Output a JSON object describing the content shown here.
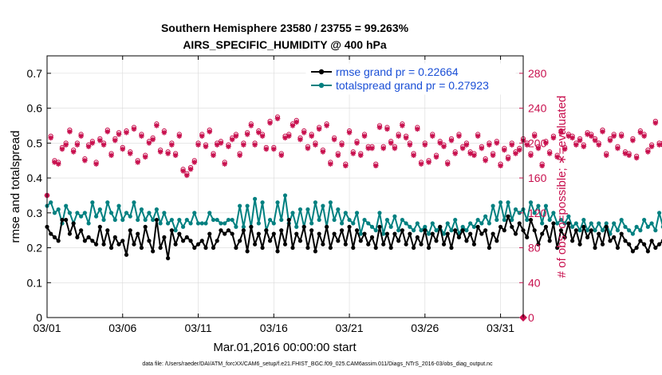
{
  "colors": {
    "rmse": "#000000",
    "spread": "#008080",
    "obs": "#c8104e",
    "legend_text": "#1a4fd6",
    "frame": "#000000",
    "grid": "#d9d9d9"
  },
  "chart_data": {
    "type": "line",
    "title": [
      "Southern Hemisphere 23580 / 23755 = 99.263%",
      "AIRS_SPECIFIC_HUMIDITY @ 400 hPa"
    ],
    "xlabel": "Mar.01,2016 00:00:00 start",
    "ylabel_left": "rmse and totalspread",
    "ylabel_right": "# of obs: o=possible; ∗=evaluated",
    "footnote": "data file: /Users/raeder/DAI/ATM_forcXX/CAM6_setup/f.e21.FHIST_BGC.f09_025.CAM6assim.011/Diags_NTrS_2016-03/obs_diag_output.nc",
    "x_range": [
      0,
      31.5
    ],
    "x_ticks": [
      0,
      5,
      10,
      15,
      20,
      25,
      30
    ],
    "x_tick_labels": [
      "03/01",
      "03/06",
      "03/11",
      "03/16",
      "03/21",
      "03/26",
      "03/31"
    ],
    "ylim_left": [
      0,
      0.75
    ],
    "yticks_left": [
      "0",
      "0.1",
      "0.2",
      "0.3",
      "0.4",
      "0.5",
      "0.6",
      "0.7"
    ],
    "ylim_right": [
      0,
      300
    ],
    "yticks_right": [
      "0",
      "40",
      "80",
      "120",
      "160",
      "200",
      "240",
      "280"
    ],
    "legend_position": "top-right",
    "x_step_days": 0.25,
    "series": [
      {
        "name": "rmse",
        "legend": "rmse grand pr = 0.22664",
        "axis": "left",
        "values": [
          0.26,
          0.24,
          0.23,
          0.22,
          0.28,
          0.28,
          0.24,
          0.27,
          0.23,
          0.25,
          0.22,
          0.23,
          0.22,
          0.21,
          0.26,
          0.21,
          0.25,
          0.2,
          0.23,
          0.21,
          0.22,
          0.18,
          0.25,
          0.21,
          0.24,
          0.2,
          0.26,
          0.22,
          0.19,
          0.28,
          0.2,
          0.23,
          0.17,
          0.25,
          0.21,
          0.24,
          0.22,
          0.23,
          0.22,
          0.2,
          0.21,
          0.22,
          0.2,
          0.24,
          0.2,
          0.22,
          0.25,
          0.24,
          0.25,
          0.24,
          0.2,
          0.22,
          0.25,
          0.19,
          0.26,
          0.21,
          0.24,
          0.2,
          0.25,
          0.22,
          0.24,
          0.19,
          0.25,
          0.21,
          0.28,
          0.2,
          0.24,
          0.22,
          0.26,
          0.2,
          0.25,
          0.19,
          0.24,
          0.21,
          0.26,
          0.2,
          0.24,
          0.22,
          0.25,
          0.21,
          0.26,
          0.2,
          0.25,
          0.22,
          0.24,
          0.21,
          0.23,
          0.2,
          0.26,
          0.21,
          0.24,
          0.2,
          0.24,
          0.22,
          0.25,
          0.21,
          0.24,
          0.2,
          0.23,
          0.21,
          0.25,
          0.2,
          0.24,
          0.22,
          0.26,
          0.21,
          0.24,
          0.2,
          0.25,
          0.23,
          0.25,
          0.22,
          0.24,
          0.21,
          0.26,
          0.24,
          0.25,
          0.2,
          0.24,
          0.22,
          0.26,
          0.25,
          0.29,
          0.26,
          0.24,
          0.27,
          0.25,
          0.23,
          0.28,
          0.25,
          0.21,
          0.24,
          0.26,
          0.22,
          0.27,
          0.2,
          0.25,
          0.23,
          0.27,
          0.22,
          0.25,
          0.21,
          0.26,
          0.23,
          0.25,
          0.2,
          0.24,
          0.21,
          0.26,
          0.22,
          0.23,
          0.2,
          0.24,
          0.22,
          0.21,
          0.19,
          0.2,
          0.22,
          0.21,
          0.19,
          0.22,
          0.2,
          0.21,
          0.22,
          0.24,
          0.2,
          0.23,
          0.22,
          0.15,
          0.22,
          0.23,
          0.22,
          0.24,
          0.21,
          0.24,
          0.22,
          0.21,
          0.2,
          0.24,
          0.21,
          0.23,
          0.2,
          0.24,
          0.22,
          0.21,
          0.19,
          0.23,
          0.2,
          0.21,
          0.19,
          0.24,
          0.22,
          0.23,
          0.2,
          0.21,
          0.18,
          0.2,
          0.24,
          0.22,
          0.19,
          0.23,
          0.21,
          0.18,
          0.2,
          0.16,
          0.2,
          0.18,
          0.22,
          0.16,
          0.21,
          0.23,
          0.22
        ]
      },
      {
        "name": "totalspread",
        "legend": "totalspread grand pr = 0.27923",
        "axis": "left",
        "values": [
          0.32,
          0.33,
          0.3,
          0.31,
          0.27,
          0.32,
          0.3,
          0.27,
          0.3,
          0.29,
          0.3,
          0.27,
          0.33,
          0.29,
          0.31,
          0.28,
          0.33,
          0.3,
          0.28,
          0.32,
          0.28,
          0.3,
          0.29,
          0.33,
          0.28,
          0.31,
          0.28,
          0.3,
          0.28,
          0.31,
          0.27,
          0.3,
          0.27,
          0.28,
          0.25,
          0.28,
          0.26,
          0.28,
          0.27,
          0.3,
          0.27,
          0.27,
          0.27,
          0.3,
          0.28,
          0.28,
          0.27,
          0.27,
          0.28,
          0.28,
          0.26,
          0.32,
          0.26,
          0.32,
          0.26,
          0.34,
          0.27,
          0.33,
          0.25,
          0.28,
          0.27,
          0.33,
          0.28,
          0.35,
          0.27,
          0.3,
          0.26,
          0.31,
          0.26,
          0.31,
          0.27,
          0.33,
          0.28,
          0.32,
          0.26,
          0.33,
          0.28,
          0.31,
          0.27,
          0.3,
          0.28,
          0.27,
          0.3,
          0.24,
          0.28,
          0.27,
          0.26,
          0.25,
          0.3,
          0.24,
          0.28,
          0.26,
          0.29,
          0.25,
          0.28,
          0.27,
          0.26,
          0.25,
          0.27,
          0.25,
          0.26,
          0.24,
          0.27,
          0.25,
          0.26,
          0.24,
          0.27,
          0.25,
          0.28,
          0.24,
          0.26,
          0.25,
          0.27,
          0.26,
          0.28,
          0.27,
          0.29,
          0.27,
          0.32,
          0.28,
          0.33,
          0.28,
          0.33,
          0.28,
          0.31,
          0.3,
          0.31,
          0.28,
          0.33,
          0.3,
          0.32,
          0.27,
          0.32,
          0.28,
          0.3,
          0.27,
          0.28,
          0.27,
          0.29,
          0.26,
          0.27,
          0.25,
          0.28,
          0.25,
          0.27,
          0.25,
          0.27,
          0.25,
          0.27,
          0.24,
          0.27,
          0.25,
          0.28,
          0.26,
          0.25,
          0.24,
          0.26,
          0.25,
          0.28,
          0.26,
          0.27,
          0.25,
          0.3,
          0.26,
          0.32,
          0.26,
          0.27,
          0.25,
          0.26,
          0.24,
          0.27,
          0.26,
          0.28,
          0.26,
          0.27,
          0.26,
          0.28,
          0.26,
          0.27,
          0.25,
          0.26,
          0.25,
          0.27,
          0.26,
          0.27,
          0.26,
          0.28,
          0.26,
          0.25,
          0.26,
          0.25,
          0.26,
          0.32,
          0.31,
          0.32,
          0.29,
          0.3,
          0.27,
          0.29,
          0.26,
          0.3,
          0.26,
          0.27,
          0.25,
          0.26,
          0.25,
          0.25,
          0.23,
          0.26,
          0.24,
          0.27,
          0.25,
          0.28,
          0.24,
          0.26,
          0.25,
          0.24,
          0.23,
          0.27,
          0.25,
          0.28
        ]
      },
      {
        "name": "obs_possible",
        "legend": "o=possible",
        "axis": "right",
        "marker": "o",
        "values": [
          140,
          208,
          180,
          178,
          195,
          200,
          215,
          192,
          200,
          210,
          182,
          198,
          202,
          178,
          205,
          200,
          215,
          188,
          205,
          212,
          195,
          214,
          190,
          218,
          180,
          210,
          186,
          202,
          206,
          222,
          192,
          214,
          190,
          200,
          188,
          210,
          170,
          165,
          172,
          180,
          200,
          210,
          198,
          215,
          188,
          200,
          202,
          178,
          198,
          206,
          210,
          188,
          200,
          212,
          222,
          200,
          214,
          210,
          195,
          225,
          195,
          230,
          188,
          208,
          210,
          222,
          226,
          206,
          214,
          196,
          210,
          200,
          218,
          192,
          222,
          178,
          206,
          188,
          200,
          176,
          214,
          190,
          202,
          188,
          210,
          196,
          196,
          176,
          220,
          196,
          218,
          202,
          196,
          210,
          222,
          208,
          200,
          188,
          218,
          178,
          200,
          180,
          210,
          186,
          202,
          198,
          178,
          205,
          190,
          210,
          196,
          200,
          190,
          188,
          210,
          196,
          182,
          200,
          188,
          202,
          176,
          194,
          184,
          200,
          190,
          194,
          205,
          200,
          188,
          210,
          196,
          176,
          202,
          190,
          208,
          186,
          214,
          195,
          210,
          208,
          200,
          205,
          198,
          212,
          210,
          205,
          200,
          215,
          188,
          205,
          210,
          196,
          210,
          190,
          188,
          205,
          185,
          214,
          210,
          192,
          198,
          225,
          200,
          200,
          212,
          188,
          214,
          200,
          224,
          196,
          205,
          190,
          190,
          196,
          178,
          216,
          205,
          196,
          196,
          178,
          210,
          176,
          200,
          208,
          198,
          175,
          204,
          185,
          176,
          172,
          210,
          176,
          200,
          185,
          175,
          164,
          200,
          172,
          205,
          192,
          178,
          202,
          188,
          176,
          186,
          190,
          168,
          194,
          172,
          180,
          176,
          166,
          168,
          178,
          168,
          170,
          200,
          190,
          186,
          196,
          172,
          212,
          210,
          170,
          212,
          210
        ]
      },
      {
        "name": "obs_evaluated",
        "legend": "∗=evaluated",
        "axis": "right",
        "marker": "*",
        "values": [
          140,
          206,
          178,
          176,
          193,
          198,
          213,
          190,
          198,
          208,
          180,
          196,
          200,
          176,
          203,
          198,
          213,
          186,
          203,
          210,
          193,
          212,
          188,
          216,
          178,
          208,
          184,
          200,
          204,
          220,
          190,
          212,
          188,
          198,
          186,
          208,
          168,
          163,
          170,
          178,
          198,
          208,
          196,
          213,
          186,
          198,
          200,
          176,
          196,
          204,
          208,
          186,
          198,
          210,
          220,
          198,
          212,
          208,
          193,
          223,
          193,
          228,
          186,
          206,
          208,
          220,
          224,
          204,
          212,
          194,
          208,
          198,
          216,
          190,
          220,
          176,
          204,
          186,
          198,
          174,
          212,
          188,
          200,
          186,
          208,
          194,
          194,
          174,
          218,
          194,
          216,
          200,
          194,
          208,
          220,
          206,
          198,
          186,
          216,
          176,
          198,
          178,
          208,
          184,
          200,
          196,
          176,
          203,
          188,
          208,
          194,
          198,
          188,
          186,
          208,
          194,
          180,
          198,
          186,
          200,
          174,
          192,
          182,
          198,
          188,
          192,
          203,
          198,
          186,
          208,
          194,
          174,
          200,
          188,
          206,
          184,
          212,
          193,
          208,
          206,
          198,
          203,
          196,
          210,
          208,
          203,
          198,
          213,
          186,
          203,
          208,
          194,
          208,
          188,
          186,
          203,
          183,
          212,
          208,
          190,
          196,
          223,
          198,
          198,
          210,
          186,
          212,
          198,
          222,
          194,
          203,
          188,
          188,
          194,
          176,
          214,
          203,
          194,
          194,
          176,
          208,
          174,
          198,
          206,
          196,
          173,
          202,
          183,
          174,
          170,
          208,
          174,
          198,
          183,
          173,
          162,
          198,
          170,
          203,
          190,
          176,
          200,
          186,
          174,
          184,
          188,
          166,
          192,
          170,
          178,
          174,
          164,
          166,
          176,
          166,
          168,
          198,
          188,
          184,
          194,
          170,
          210,
          208,
          168,
          210,
          208
        ]
      }
    ]
  }
}
